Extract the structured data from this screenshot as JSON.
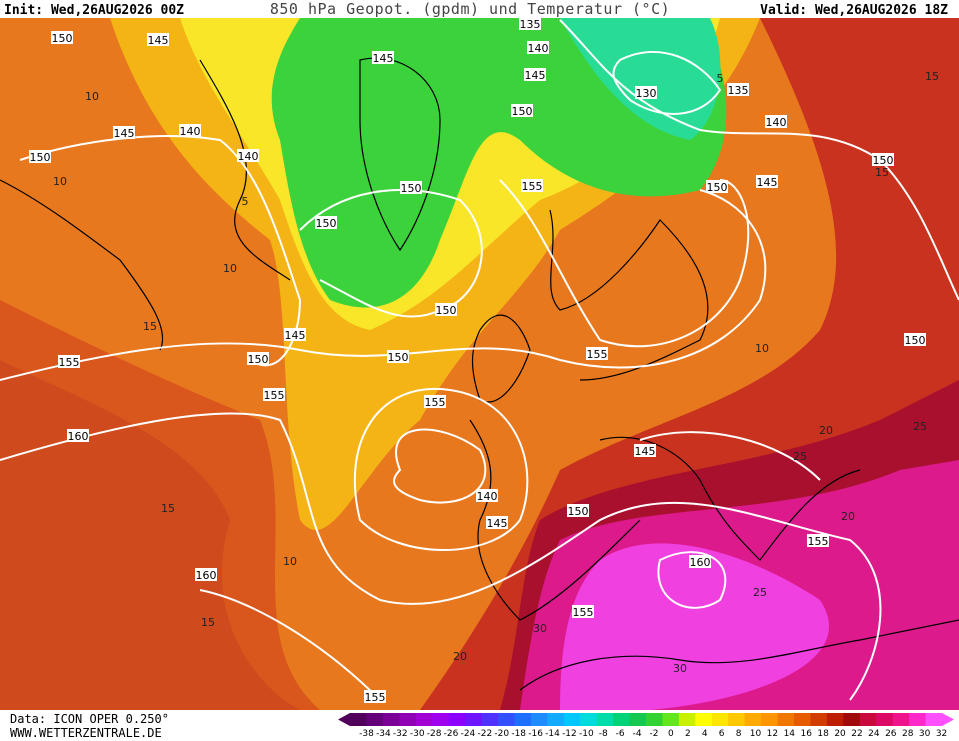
{
  "header": {
    "init": "Init: Wed,26AUG2026 00Z",
    "title": "850 hPa Geopot. (gpdm) und Temperatur (°C)",
    "valid": "Valid: Wed,26AUG2026 18Z"
  },
  "footer": {
    "data": "Data: ICON OPER 0.250°",
    "source": "WWW.WETTERZENTRALE.DE"
  },
  "geopotential_labels": [
    150,
    145,
    135,
    140,
    145,
    145,
    150,
    130,
    135,
    140,
    145,
    140,
    140,
    150,
    150,
    155,
    150,
    145,
    150,
    150,
    150,
    145,
    150,
    150,
    155,
    155,
    155,
    145,
    160,
    155,
    140,
    145,
    150,
    155,
    160,
    160,
    155,
    155,
    150
  ],
  "temperature_labels": [
    10,
    15,
    10,
    5,
    10,
    15,
    15,
    20,
    25,
    30,
    25,
    20,
    15,
    10,
    5,
    15,
    20,
    25,
    30,
    10
  ],
  "colorbar": {
    "ticks": [
      -38,
      -34,
      -32,
      -30,
      -28,
      -26,
      -24,
      -22,
      -20,
      -18,
      -16,
      -14,
      -12,
      -10,
      -8,
      -6,
      -4,
      -2,
      0,
      2,
      4,
      6,
      8,
      10,
      12,
      14,
      16,
      18,
      20,
      22,
      24,
      26,
      28,
      30,
      32
    ],
    "colors": [
      "#50005a",
      "#640078",
      "#7a0096",
      "#9000b4",
      "#a000d2",
      "#a000f0",
      "#8c00ff",
      "#6e14ff",
      "#5032ff",
      "#3250ff",
      "#1e6eff",
      "#1e8cff",
      "#14aaff",
      "#00c8ff",
      "#00dcdc",
      "#00dcaa",
      "#00d278",
      "#14c850",
      "#32d232",
      "#64e61e",
      "#c8f000",
      "#ffff00",
      "#ffe600",
      "#ffc800",
      "#ffaa00",
      "#ff9600",
      "#f07800",
      "#e65a00",
      "#d23c00",
      "#be1e00",
      "#a00a0a",
      "#c80a3c",
      "#dc0a64",
      "#f0148c",
      "#ff28c8",
      "#ff50ff"
    ]
  }
}
